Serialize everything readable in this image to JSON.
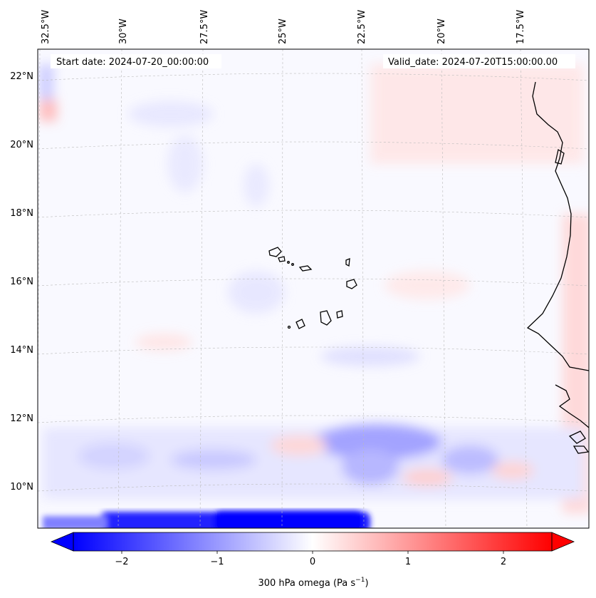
{
  "map": {
    "start_date": "Start date: 2024-07-20_00:00:00",
    "valid_date": "Valid_date: 2024-07-20T15:00:00.00",
    "lon_labels": [
      "32.5°W",
      "30°W",
      "27.5°W",
      "25°W",
      "22.5°W",
      "20°W",
      "17.5°W"
    ],
    "lat_labels": [
      "22°N",
      "20°N",
      "18°N",
      "16°N",
      "14°N",
      "12°N",
      "10°N"
    ]
  },
  "colorbar": {
    "label_prefix": "300 hPa omega (Pa s",
    "label_exp": "−1",
    "label_suffix": ")",
    "ticks": [
      "−2",
      "−1",
      "0",
      "1",
      "2"
    ],
    "range": [
      -2.5,
      2.5
    ],
    "low_color": "#0000ff",
    "mid_color": "#ffffff",
    "high_color": "#ff0000"
  }
}
